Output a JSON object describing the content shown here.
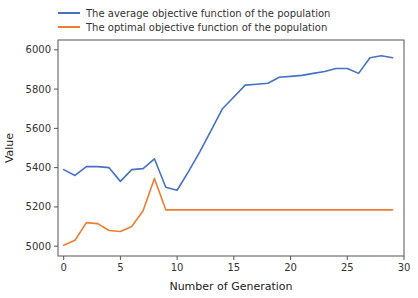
{
  "chart_data": {
    "type": "line",
    "xlabel": "Number of Generation",
    "ylabel": "Value",
    "x": [
      0,
      1,
      2,
      3,
      4,
      5,
      6,
      7,
      8,
      9,
      10,
      11,
      12,
      13,
      14,
      15,
      16,
      17,
      18,
      19,
      20,
      21,
      22,
      23,
      24,
      25,
      26,
      27,
      28,
      29
    ],
    "series": [
      {
        "name": "The average objective function of the population",
        "color": "#4472C4",
        "values": [
          5390,
          5360,
          5405,
          5405,
          5400,
          5330,
          5390,
          5395,
          5445,
          5300,
          5285,
          5380,
          5480,
          5590,
          5700,
          5760,
          5820,
          5825,
          5830,
          5860,
          5865,
          5870,
          5880,
          5890,
          5905,
          5905,
          5880,
          5960,
          5970,
          5960
        ]
      },
      {
        "name": "The optimal objective function of the population",
        "color": "#ED7D31",
        "values": [
          5005,
          5030,
          5120,
          5115,
          5080,
          5075,
          5100,
          5180,
          5345,
          5185,
          5185,
          5185,
          5185,
          5185,
          5185,
          5185,
          5185,
          5185,
          5185,
          5185,
          5185,
          5185,
          5185,
          5185,
          5185,
          5185,
          5185,
          5185,
          5185,
          5185
        ]
      }
    ],
    "xlim": [
      -0.5,
      30
    ],
    "ylim": [
      4950,
      6050
    ],
    "xticks": [
      0,
      5,
      10,
      15,
      20,
      25,
      30
    ],
    "yticks": [
      5000,
      5200,
      5400,
      5600,
      5800,
      6000
    ],
    "grid": false,
    "legend": "top"
  }
}
